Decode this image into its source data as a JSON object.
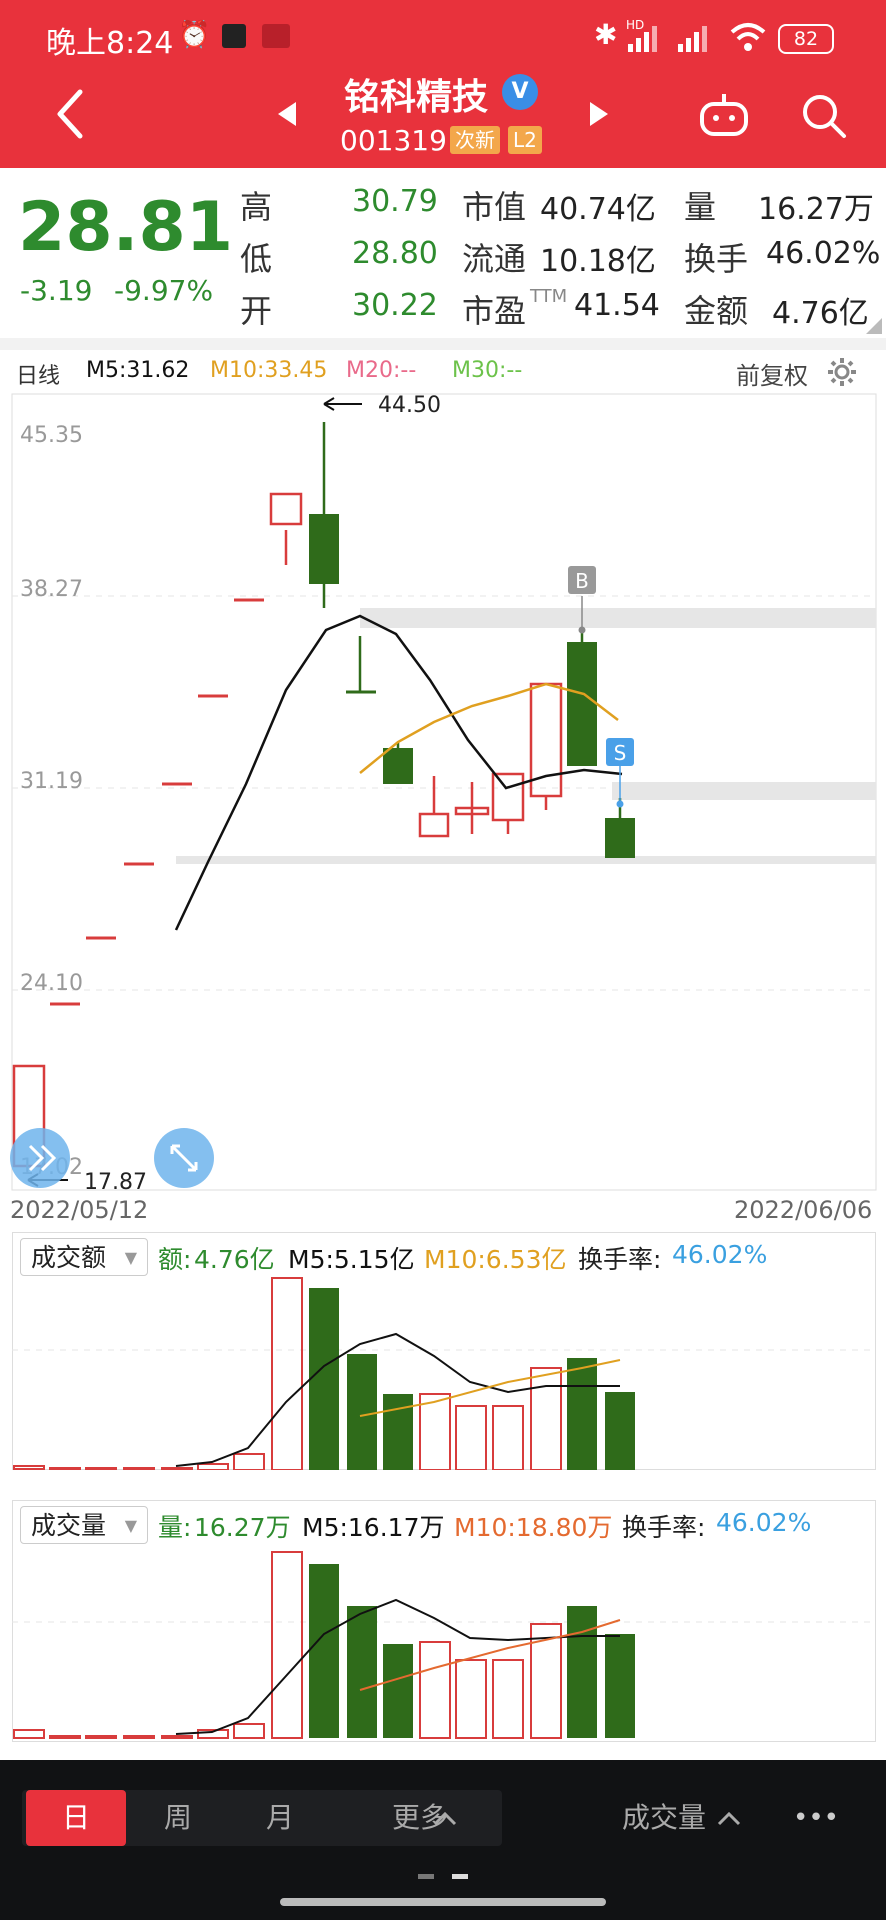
{
  "status_bar": {
    "time": "晚上8:24",
    "battery": "82",
    "network_label": "HD"
  },
  "header": {
    "stock_name": "铭科精技",
    "stock_code": "001319",
    "tag_new": "次新",
    "tag_level": "L2",
    "verified_badge": "V",
    "icons": [
      "back-icon",
      "prev-stock-icon",
      "next-stock-icon",
      "robot-icon",
      "search-icon"
    ]
  },
  "quote": {
    "price": "28.81",
    "change": "-3.19",
    "change_pct": "-9.97%",
    "high_label": "高",
    "high": "30.79",
    "low_label": "低",
    "low": "28.80",
    "open_label": "开",
    "open": "30.22",
    "mktcap_label": "市值",
    "mktcap": "40.74亿",
    "float_label": "流通",
    "float": "10.18亿",
    "pe_label": "市盈",
    "pe_sup": "TTM",
    "pe": "41.54",
    "vol_label": "量",
    "vol": "16.27万",
    "turnover_label": "换手",
    "turnover": "46.02%",
    "amount_label": "金额",
    "amount": "4.76亿"
  },
  "kline": {
    "period_label": "日线",
    "ma5": "M5:31.62",
    "ma10": "M10:33.45",
    "ma20": "M20:--",
    "ma30": "M30:--",
    "adjust_label": "前复权",
    "y_labels": [
      "45.35",
      "38.27",
      "31.19",
      "24.10",
      "17.02"
    ],
    "max_label": "44.50",
    "min_label": "17.87",
    "buy_marker": "B",
    "sell_marker": "S",
    "start_date": "2022/05/12",
    "end_date": "2022/06/06",
    "colors": {
      "up": "#d83c3c",
      "down": "#2f6b1a",
      "ma5": "#111111",
      "ma10": "#e0a020"
    }
  },
  "amount_panel": {
    "selector": "成交额",
    "value_label": "额:",
    "value": "4.76亿",
    "ma5": "M5:5.15亿",
    "ma10": "M10:6.53亿",
    "turnover_label": "换手率:",
    "turnover": "46.02%"
  },
  "volume_panel": {
    "selector": "成交量",
    "value_label": "量:",
    "value": "16.27万",
    "ma5": "M5:16.17万",
    "ma10": "M10:18.80万",
    "turnover_label": "换手率:",
    "turnover": "46.02%"
  },
  "bottom_tabs": {
    "day": "日",
    "week": "周",
    "month": "月",
    "more": "更多",
    "indicator": "成交量",
    "menu": "•••"
  }
}
